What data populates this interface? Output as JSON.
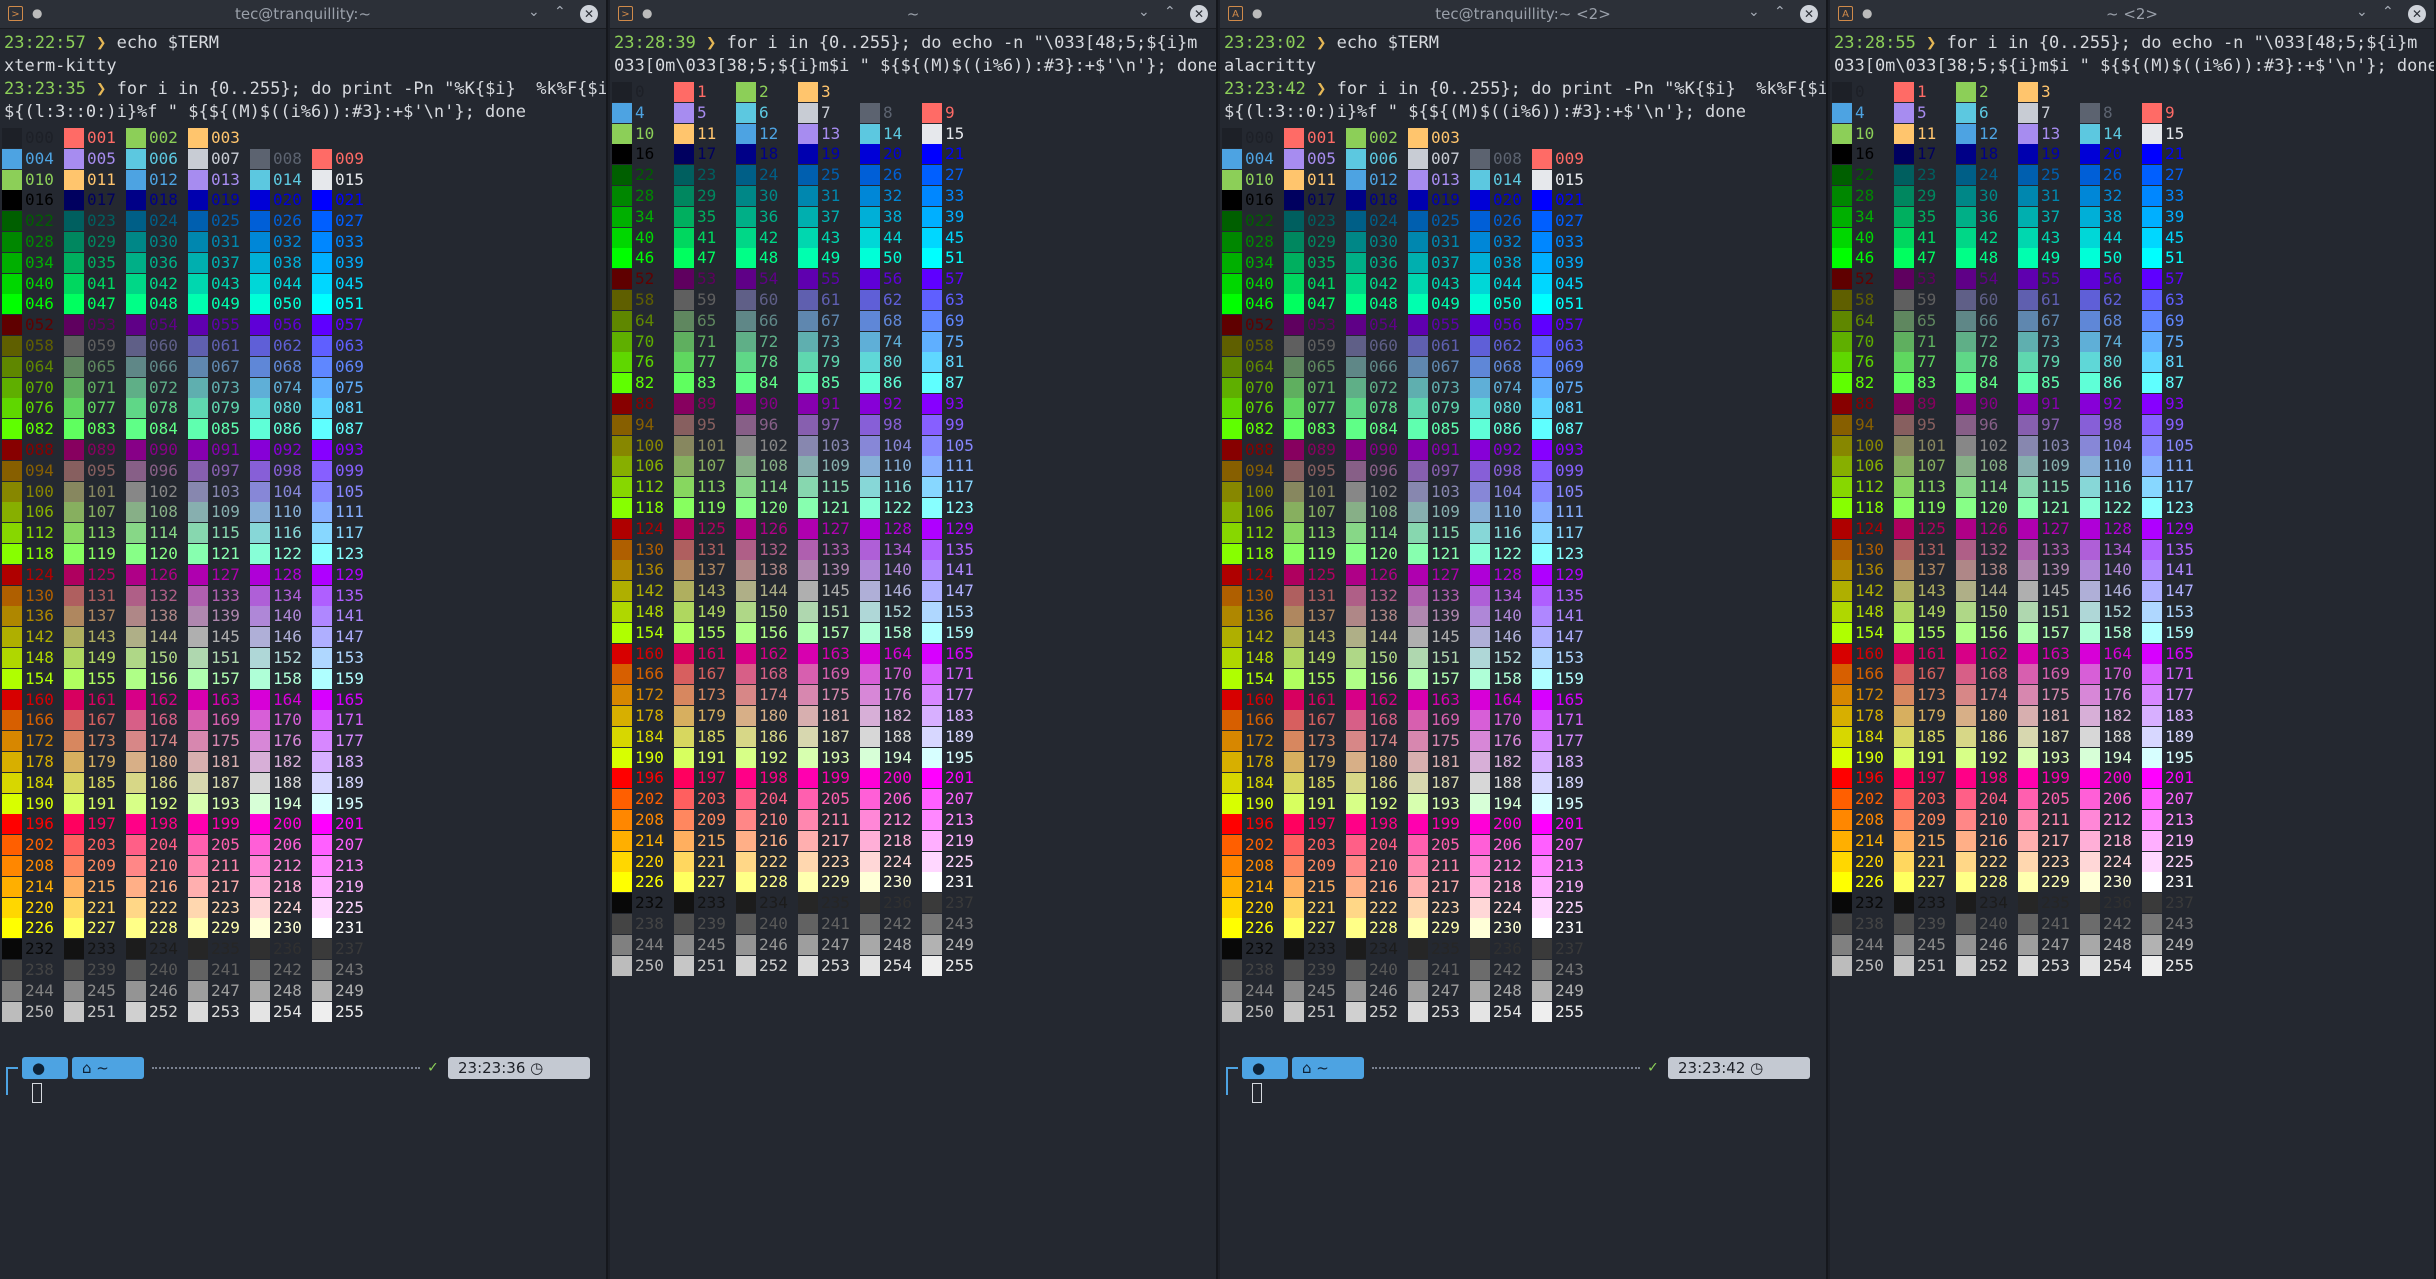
{
  "windows": [
    {
      "id": "w1",
      "title": "tec@tranquillity:~",
      "app_icon": "terminal-app-icon",
      "lines": [
        {
          "ts": "23:22:57",
          "cmd": "echo $TERM"
        },
        {
          "out": "xterm-kitty"
        },
        {
          "ts": "23:23:35",
          "cmd": "for i in {0..255}; do print -Pn \"%K{$i}  %k%F{$i}"
        },
        {
          "cont": "${(l:3::0:)i}%f \" ${${(M)$((i%6)):#3}:+$'\\n'}; done"
        }
      ],
      "grid_style": "pad3",
      "prompt": {
        "home": "~",
        "time": "23:23:36"
      }
    },
    {
      "id": "w2",
      "title": "~",
      "app_icon": "terminal-app-icon",
      "lines": [
        {
          "ts": "23:28:39",
          "cmd": "for i in {0..255}; do echo -n \"\\033[48;5;${i}m  \\"
        },
        {
          "cont": "033[0m\\033[38;5;${i}m$i \" ${${(M)$((i%6)):#3}:+$'\\n'}; done"
        }
      ],
      "grid_style": "plain",
      "prompt": null
    },
    {
      "id": "w3",
      "title": "tec@tranquillity:~ <2>",
      "app_icon": "alacritty-app-icon",
      "lines": [
        {
          "ts": "23:23:02",
          "cmd": "echo $TERM"
        },
        {
          "out": "alacritty"
        },
        {
          "ts": "23:23:42",
          "cmd": "for i in {0..255}; do print -Pn \"%K{$i}  %k%F{$i}"
        },
        {
          "cont": "${(l:3::0:)i}%f \" ${${(M)$((i%6)):#3}:+$'\\n'}; done"
        }
      ],
      "grid_style": "pad3",
      "prompt": {
        "home": "~",
        "time": "23:23:42"
      }
    },
    {
      "id": "w4",
      "title": "~ <2>",
      "app_icon": "alacritty-app-icon",
      "lines": [
        {
          "ts": "23:28:55",
          "cmd": "for i in {0..255}; do echo -n \"\\033[48;5;${i}m  \\"
        },
        {
          "cont": "033[0m\\033[38;5;${i}m$i \" ${${(M)$((i%6)):#3}:+$'\\n'}; done"
        }
      ],
      "grid_style": "plain",
      "prompt": null
    }
  ],
  "base_colors": [
    "#1d2027",
    "#ff6b66",
    "#8ccf58",
    "#ffc56d",
    "#4da3e2",
    "#a78cf0",
    "#5cc8e0",
    "#c8ccd4",
    "#5c6370",
    "#ff6b66",
    "#8ccf58",
    "#ffc56d",
    "#4da3e2",
    "#a78cf0",
    "#5cc8e0",
    "#e6e8ec"
  ],
  "icons": {
    "window_controls": [
      "minimize-icon",
      "maximize-icon",
      "close-icon"
    ],
    "prompt": [
      "os-logo-icon",
      "home-icon",
      "clock-icon",
      "check-icon"
    ]
  },
  "prompt_check": "✓"
}
